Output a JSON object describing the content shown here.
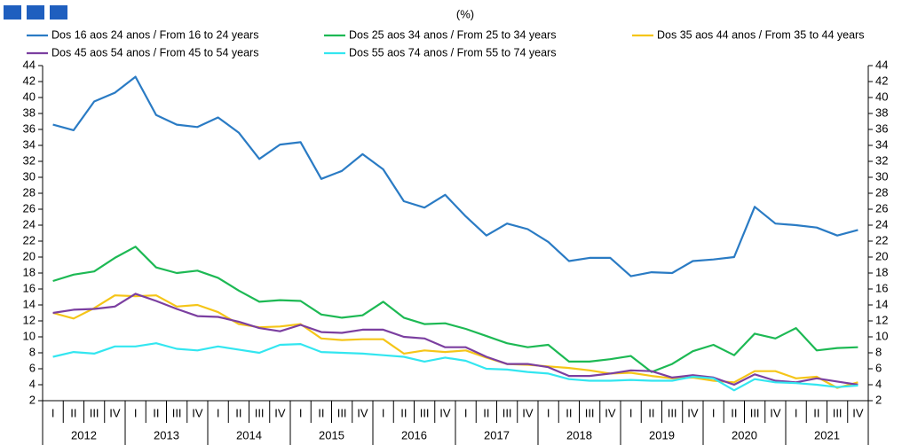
{
  "chart_data": {
    "type": "line",
    "subtitle": "(%)",
    "categories": [
      "I",
      "II",
      "III",
      "IV",
      "I",
      "II",
      "III",
      "IV",
      "I",
      "II",
      "III",
      "IV",
      "I",
      "II",
      "III",
      "IV",
      "I",
      "II",
      "III",
      "IV",
      "I",
      "II",
      "III",
      "IV",
      "I",
      "II",
      "III",
      "IV",
      "I",
      "II",
      "III",
      "IV",
      "I",
      "II",
      "III",
      "IV",
      "I",
      "II",
      "III",
      "IV"
    ],
    "year_labels": [
      "2012",
      "2013",
      "2014",
      "2015",
      "2016",
      "2017",
      "2018",
      "2019",
      "2020",
      "2021"
    ],
    "ylim": [
      2,
      44
    ],
    "yticks": [
      2,
      4,
      6,
      8,
      10,
      12,
      14,
      16,
      18,
      20,
      22,
      24,
      26,
      28,
      30,
      32,
      34,
      36,
      38,
      40,
      42,
      44
    ],
    "series": [
      {
        "name": "Dos 16 aos 24 anos / From 16 to 24 years",
        "color": "#2a7bc4",
        "values": [
          36.6,
          35.9,
          39.5,
          40.6,
          42.6,
          37.8,
          36.6,
          36.3,
          37.5,
          35.6,
          32.3,
          34.1,
          34.4,
          29.8,
          30.8,
          32.9,
          31.0,
          27.0,
          26.2,
          27.8,
          25.1,
          22.7,
          24.2,
          23.5,
          21.9,
          19.5,
          19.9,
          19.9,
          17.6,
          18.1,
          18.0,
          19.5,
          19.7,
          20.0,
          26.3,
          24.2,
          24.0,
          23.7,
          22.7,
          23.4
        ]
      },
      {
        "name": "Dos 25 aos 34 anos / From 25 to 34 years",
        "color": "#1db954",
        "values": [
          17.0,
          17.8,
          18.2,
          19.9,
          21.3,
          18.7,
          18.0,
          18.3,
          17.4,
          15.8,
          14.4,
          14.6,
          14.5,
          12.8,
          12.4,
          12.7,
          14.4,
          12.4,
          11.6,
          11.7,
          11.0,
          10.1,
          9.2,
          8.7,
          9.0,
          6.9,
          6.9,
          7.2,
          7.6,
          5.6,
          6.6,
          8.2,
          9.0,
          7.7,
          10.4,
          9.8,
          11.1,
          8.3,
          8.6,
          8.7
        ]
      },
      {
        "name": "Dos 35 aos 44 anos / From 35 to 44 years",
        "color": "#f5c518",
        "values": [
          13.0,
          12.3,
          13.6,
          15.2,
          15.1,
          15.2,
          13.8,
          14.0,
          13.1,
          11.6,
          11.2,
          11.3,
          11.6,
          9.8,
          9.6,
          9.7,
          9.7,
          7.9,
          8.3,
          8.1,
          8.3,
          7.4,
          6.6,
          6.5,
          6.3,
          6.1,
          5.8,
          5.4,
          5.5,
          5.1,
          4.8,
          4.9,
          4.5,
          4.3,
          5.7,
          5.7,
          4.8,
          5.0,
          3.6,
          4.3
        ]
      },
      {
        "name": "Dos 45 aos 54 anos / From 45 to 54 years",
        "color": "#7b3fa0",
        "values": [
          13.0,
          13.4,
          13.5,
          13.8,
          15.4,
          14.5,
          13.5,
          12.6,
          12.5,
          11.9,
          11.1,
          10.7,
          11.5,
          10.6,
          10.5,
          10.9,
          10.9,
          10.0,
          9.8,
          8.7,
          8.7,
          7.5,
          6.6,
          6.6,
          6.2,
          5.1,
          5.1,
          5.4,
          5.8,
          5.7,
          4.9,
          5.2,
          4.9,
          4.0,
          5.3,
          4.5,
          4.3,
          4.8,
          4.4,
          4.0
        ]
      },
      {
        "name": "Dos 55 aos 74 anos / From 55 to 74 years",
        "color": "#33e6f0",
        "values": [
          7.5,
          8.1,
          7.9,
          8.8,
          8.8,
          9.2,
          8.5,
          8.3,
          8.8,
          8.4,
          8.0,
          9.0,
          9.1,
          8.1,
          8.0,
          7.9,
          7.7,
          7.5,
          6.9,
          7.4,
          7.0,
          6.0,
          5.9,
          5.6,
          5.4,
          4.7,
          4.5,
          4.5,
          4.6,
          4.5,
          4.5,
          5.0,
          4.8,
          3.3,
          4.7,
          4.3,
          4.2,
          4.0,
          3.7,
          3.9
        ]
      }
    ]
  }
}
